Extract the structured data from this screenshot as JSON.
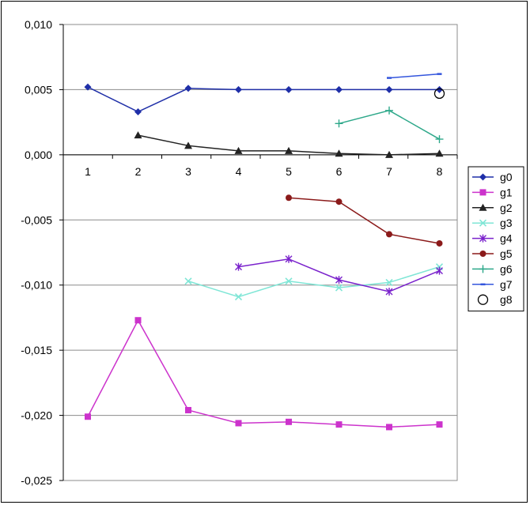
{
  "chart_data": {
    "type": "line",
    "title": "",
    "xlabel": "",
    "ylabel": "",
    "categories": [
      "1",
      "2",
      "3",
      "4",
      "5",
      "6",
      "7",
      "8"
    ],
    "ylim": [
      -0.025,
      0.01
    ],
    "yticks": [
      0.01,
      0.005,
      0.0,
      -0.005,
      -0.01,
      -0.015,
      -0.02,
      -0.025
    ],
    "ytick_labels": [
      "0,010",
      "0,005",
      "0,000",
      "-0,005",
      "-0,010",
      "-0,015",
      "-0,020",
      "-0,025"
    ],
    "grid": "horizontal",
    "legend_position": "right",
    "series": [
      {
        "name": "g0",
        "color": "#1f2fa8",
        "marker": "diamond",
        "x": [
          1,
          2,
          3,
          4,
          5,
          6,
          7,
          8
        ],
        "values": [
          0.0052,
          0.0033,
          0.0051,
          0.005,
          0.005,
          0.005,
          0.005,
          0.005
        ]
      },
      {
        "name": "g1",
        "color": "#cc33cc",
        "marker": "square",
        "x": [
          1,
          2,
          3,
          4,
          5,
          6,
          7,
          8
        ],
        "values": [
          -0.0201,
          -0.0127,
          -0.0196,
          -0.0206,
          -0.0205,
          -0.0207,
          -0.0209,
          -0.0207
        ]
      },
      {
        "name": "g2",
        "color": "#222222",
        "marker": "triangle",
        "x": [
          2,
          3,
          4,
          5,
          6,
          7,
          8
        ],
        "values": [
          0.0015,
          0.0007,
          0.0003,
          0.0003,
          0.0001,
          0.0,
          0.0001
        ]
      },
      {
        "name": "g3",
        "color": "#7fe6d6",
        "marker": "x",
        "x": [
          3,
          4,
          5,
          6,
          7,
          8
        ],
        "values": [
          -0.0097,
          -0.0109,
          -0.0097,
          -0.0102,
          -0.0098,
          -0.0086
        ]
      },
      {
        "name": "g4",
        "color": "#7a22cc",
        "marker": "star",
        "x": [
          4,
          5,
          6,
          7,
          8
        ],
        "values": [
          -0.0086,
          -0.008,
          -0.0096,
          -0.0105,
          -0.0089
        ]
      },
      {
        "name": "g5",
        "color": "#8b1a1a",
        "marker": "circle",
        "x": [
          5,
          6,
          7,
          8
        ],
        "values": [
          -0.0033,
          -0.0036,
          -0.0061,
          -0.0068
        ]
      },
      {
        "name": "g6",
        "color": "#2ea88a",
        "marker": "plus",
        "x": [
          6,
          7,
          8
        ],
        "values": [
          0.0024,
          0.0034,
          0.0012
        ]
      },
      {
        "name": "g7",
        "color": "#3355dd",
        "marker": "dash",
        "x": [
          7,
          8
        ],
        "values": [
          0.0059,
          0.0062
        ]
      },
      {
        "name": "g8",
        "color": "#000000",
        "marker": "open-circle",
        "x": [
          8
        ],
        "values": [
          0.0047
        ]
      }
    ]
  }
}
